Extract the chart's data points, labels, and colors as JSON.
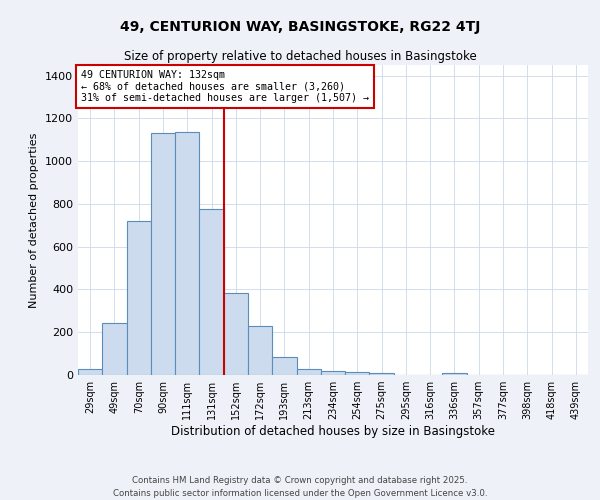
{
  "title": "49, CENTURION WAY, BASINGSTOKE, RG22 4TJ",
  "subtitle": "Size of property relative to detached houses in Basingstoke",
  "xlabel": "Distribution of detached houses by size in Basingstoke",
  "ylabel": "Number of detached properties",
  "bar_labels": [
    "29sqm",
    "49sqm",
    "70sqm",
    "90sqm",
    "111sqm",
    "131sqm",
    "152sqm",
    "172sqm",
    "193sqm",
    "213sqm",
    "234sqm",
    "254sqm",
    "275sqm",
    "295sqm",
    "316sqm",
    "336sqm",
    "357sqm",
    "377sqm",
    "398sqm",
    "418sqm",
    "439sqm"
  ],
  "bar_heights": [
    30,
    245,
    720,
    1130,
    1135,
    775,
    385,
    230,
    85,
    30,
    18,
    15,
    10,
    0,
    0,
    10,
    0,
    0,
    0,
    0,
    0
  ],
  "bar_color": "#ccdcee",
  "bar_edge_color": "#5b8db8",
  "vline_color": "#cc0000",
  "annotation_title": "49 CENTURION WAY: 132sqm",
  "annotation_line1": "← 68% of detached houses are smaller (3,260)",
  "annotation_line2": "31% of semi-detached houses are larger (1,507) →",
  "annotation_box_edge": "#cc0000",
  "ylim": [
    0,
    1450
  ],
  "yticks": [
    0,
    200,
    400,
    600,
    800,
    1000,
    1200,
    1400
  ],
  "footer1": "Contains HM Land Registry data © Crown copyright and database right 2025.",
  "footer2": "Contains public sector information licensed under the Open Government Licence v3.0.",
  "background_color": "#eef2f8",
  "plot_background_color": "#ffffff",
  "grid_color": "#ccd9e8"
}
